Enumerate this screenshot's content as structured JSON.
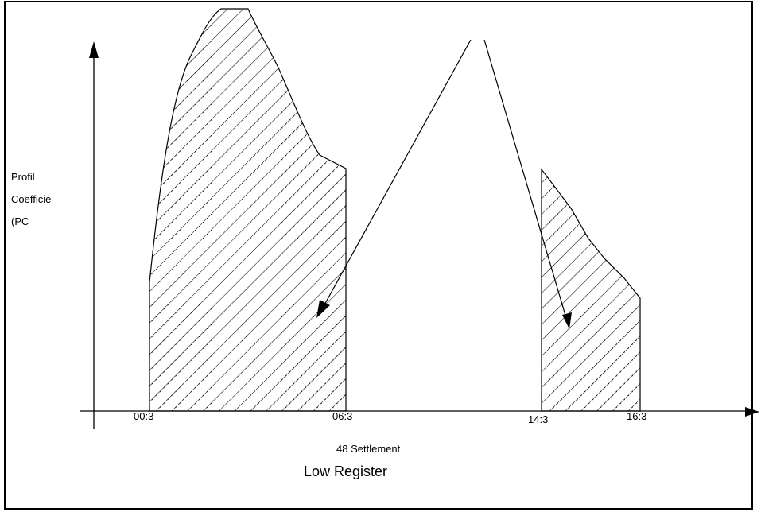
{
  "diagram": {
    "y_axis_label": [
      "Profil",
      "Coefficie",
      "(PC"
    ],
    "x_tick_labels": [
      "00:3",
      "06:3",
      "14:3",
      "16:3"
    ],
    "caption_line1": "48 Settlement",
    "caption_line2": "Low Register",
    "colors": {
      "ink": "#000000",
      "background": "#ffffff"
    },
    "shaded_periods": [
      {
        "from": "00:3",
        "to": "06:3",
        "pattern": "diagonal-hatch"
      },
      {
        "from": "14:3",
        "to": "16:3",
        "pattern": "diagonal-hatch"
      }
    ]
  }
}
